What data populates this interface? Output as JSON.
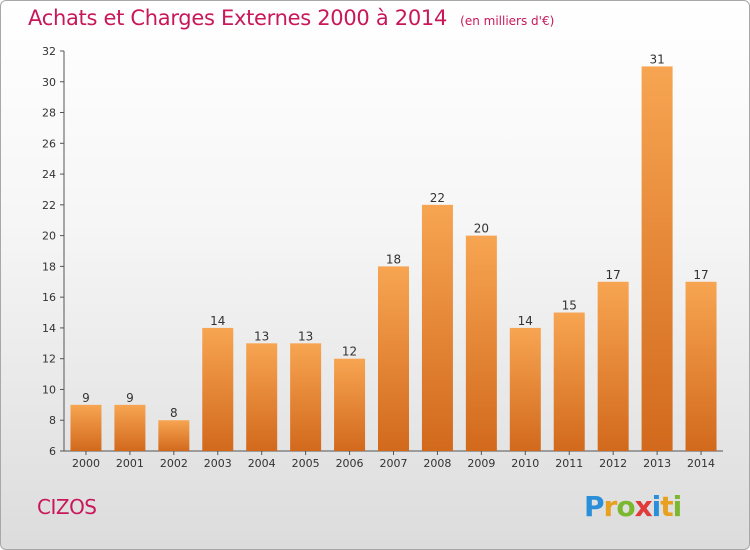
{
  "chart_data": {
    "type": "bar",
    "title": "Achats et Charges Externes 2000 à 2014",
    "subtitle": "(en milliers d'€)",
    "xlabel": "",
    "ylabel": "",
    "categories": [
      "2000",
      "2001",
      "2002",
      "2003",
      "2004",
      "2005",
      "2006",
      "2007",
      "2008",
      "2009",
      "2010",
      "2011",
      "2012",
      "2013",
      "2014"
    ],
    "values": [
      9,
      9,
      8,
      14,
      13,
      13,
      12,
      18,
      22,
      20,
      14,
      15,
      17,
      31,
      17
    ],
    "ylim": [
      6,
      32
    ],
    "yticks": [
      6,
      8,
      10,
      12,
      14,
      16,
      18,
      20,
      22,
      24,
      26,
      28,
      30,
      32
    ],
    "grid": false,
    "bar_color": "#f0902e"
  },
  "commune": "CIZOS",
  "logo": {
    "text": "Proxiti",
    "letter_colors": [
      "#2a8fd8",
      "#e8a020",
      "#7cb82f",
      "#e03a3a",
      "#2a8fd8",
      "#e8a020",
      "#7cb82f"
    ]
  }
}
